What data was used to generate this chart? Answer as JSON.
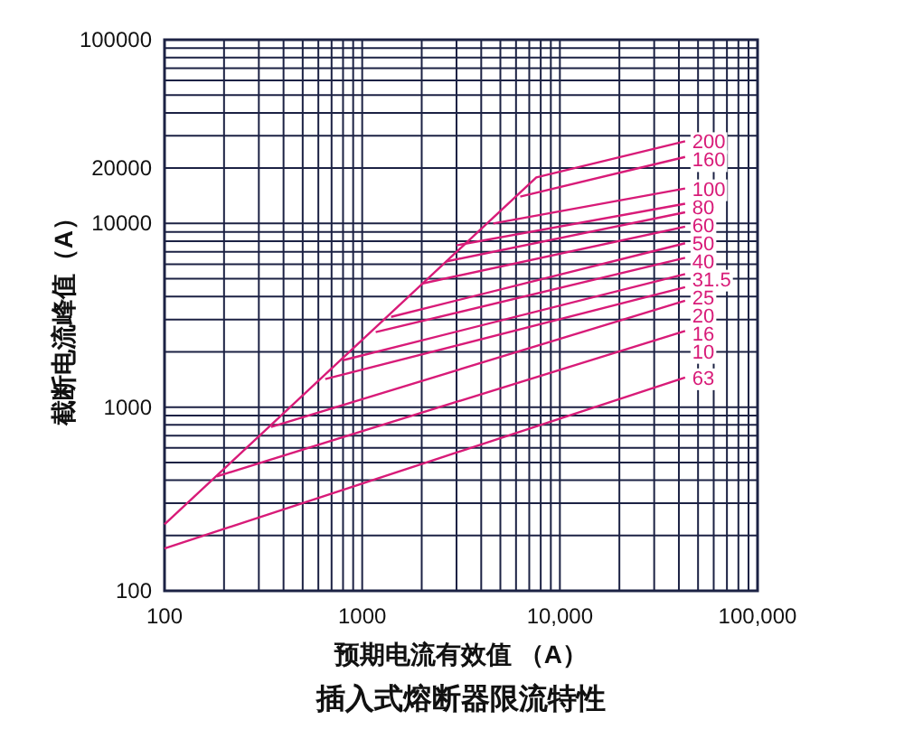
{
  "chart_data": {
    "type": "line",
    "title": "插入式熔断器限流特性",
    "xlabel": "预期电流有效值 （A）",
    "ylabel": "截断电流峰值（A）",
    "log": "xy",
    "grid": true,
    "marker": "none",
    "line_style": "solid",
    "xlim": [
      100,
      100000
    ],
    "ylim": [
      100,
      100000
    ],
    "xticks": [
      100,
      1000,
      {
        "value": 10000,
        "label": "10,000"
      },
      {
        "value": 100000,
        "label": "100,000"
      }
    ],
    "yticks": [
      100,
      1000,
      10000,
      20000,
      100000
    ],
    "series": [
      {
        "name": "200",
        "color": "#d81b78",
        "x": [
          100,
          7600,
          43000
        ],
        "values": [
          230,
          17800,
          28000
        ]
      },
      {
        "name": "160",
        "color": "#d81b78",
        "x": [
          6300,
          43000
        ],
        "values": [
          14000,
          23000
        ]
      },
      {
        "name": "100",
        "color": "#d81b78",
        "x": [
          4600,
          43000
        ],
        "values": [
          10000,
          15500
        ]
      },
      {
        "name": "80",
        "color": "#d81b78",
        "x": [
          3000,
          43000
        ],
        "values": [
          7600,
          12800
        ]
      },
      {
        "name": "60",
        "color": "#d81b78",
        "x": [
          2650,
          43000
        ],
        "values": [
          6200,
          11500
        ]
      },
      {
        "name": "50",
        "color": "#d81b78",
        "x": [
          2000,
          43000
        ],
        "values": [
          4700,
          9600
        ]
      },
      {
        "name": "40",
        "color": "#d81b78",
        "x": [
          1400,
          43000
        ],
        "values": [
          3100,
          7800
        ]
      },
      {
        "name": "31.5",
        "color": "#d81b78",
        "x": [
          1170,
          43000
        ],
        "values": [
          2560,
          6500
        ]
      },
      {
        "name": "25",
        "color": "#d81b78",
        "x": [
          800,
          43000
        ],
        "values": [
          1800,
          5300
        ]
      },
      {
        "name": "20",
        "color": "#d81b78",
        "x": [
          650,
          43000
        ],
        "values": [
          1420,
          4500
        ]
      },
      {
        "name": "16",
        "color": "#d81b78",
        "x": [
          346,
          43000
        ],
        "values": [
          780,
          3800
        ]
      },
      {
        "name": "10",
        "color": "#d81b78",
        "x": [
          184,
          43000
        ],
        "values": [
          420,
          2600
        ]
      },
      {
        "name": "63",
        "color": "#d81b78",
        "x": [
          100,
          43000
        ],
        "values": [
          170,
          1450
        ]
      }
    ]
  }
}
